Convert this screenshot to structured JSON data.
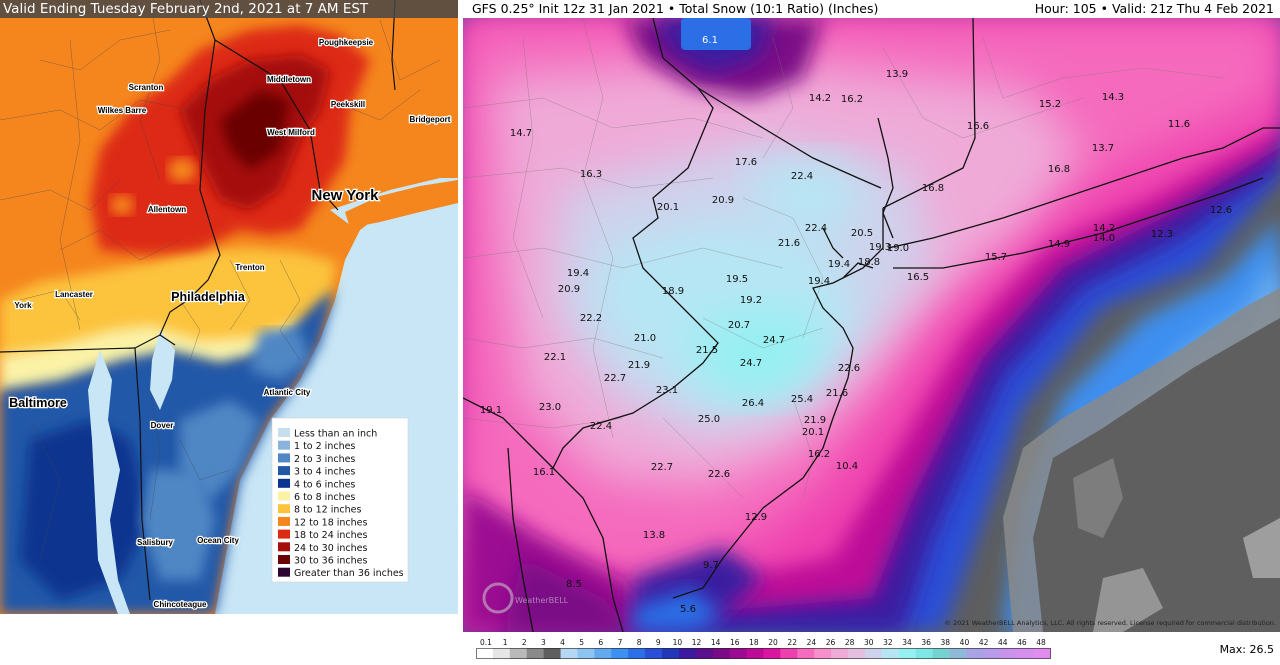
{
  "left_map": {
    "banner": "Valid Ending Tuesday February 2nd, 2021 at 7 AM EST",
    "cities": [
      {
        "name": "Poughkeepsie"
      },
      {
        "name": "Scranton"
      },
      {
        "name": "Middletown"
      },
      {
        "name": "Wilkes Barre"
      },
      {
        "name": "Peekskill"
      },
      {
        "name": "Bridgeport"
      },
      {
        "name": "West Milford"
      },
      {
        "name": "New York"
      },
      {
        "name": "Allentown"
      },
      {
        "name": "Trenton"
      },
      {
        "name": "Lancaster"
      },
      {
        "name": "Philadelphia"
      },
      {
        "name": "York"
      },
      {
        "name": "Baltimore"
      },
      {
        "name": "Atlantic City"
      },
      {
        "name": "Dover"
      },
      {
        "name": "Salisbury"
      },
      {
        "name": "Ocean City"
      },
      {
        "name": "Chincoteague"
      }
    ],
    "legend": [
      {
        "label": "Less than an inch",
        "color": "#c5def0"
      },
      {
        "label": "1 to 2 inches",
        "color": "#8ab4dd"
      },
      {
        "label": "2 to 3 inches",
        "color": "#4f86c4"
      },
      {
        "label": "3 to 4 inches",
        "color": "#2358a8"
      },
      {
        "label": "4 to 6 inches",
        "color": "#0a3490"
      },
      {
        "label": "6 to 8 inches",
        "color": "#fbf2a6"
      },
      {
        "label": "8 to 12 inches",
        "color": "#fcc33d"
      },
      {
        "label": "12 to 18 inches",
        "color": "#f5861e"
      },
      {
        "label": "18 to 24 inches",
        "color": "#dd2a12"
      },
      {
        "label": "24 to 30 inches",
        "color": "#a50f0a"
      },
      {
        "label": "30 to 36 inches",
        "color": "#6b0505"
      },
      {
        "label": "Greater than 36 inches",
        "color": "#2c0531"
      }
    ]
  },
  "right_map": {
    "header_left": "GFS 0.25° Init 12z 31 Jan 2021 • Total Snow (10:1 Ratio) (Inches)",
    "header_right": "Hour: 105 • Valid: 21z Thu 4 Feb 2021",
    "values": [
      {
        "v": "6.1"
      },
      {
        "v": "13.9"
      },
      {
        "v": "14.2"
      },
      {
        "v": "16.2"
      },
      {
        "v": "14.3"
      },
      {
        "v": "15.2"
      },
      {
        "v": "16.6"
      },
      {
        "v": "11.6"
      },
      {
        "v": "14.7"
      },
      {
        "v": "17.6"
      },
      {
        "v": "13.7"
      },
      {
        "v": "16.3"
      },
      {
        "v": "22.4"
      },
      {
        "v": "16.8"
      },
      {
        "v": "20.1"
      },
      {
        "v": "16.8"
      },
      {
        "v": "20.9"
      },
      {
        "v": "12.6"
      },
      {
        "v": "22.4"
      },
      {
        "v": "20.5"
      },
      {
        "v": "14.2"
      },
      {
        "v": "21.6"
      },
      {
        "v": "14.0"
      },
      {
        "v": "12.3"
      },
      {
        "v": "19.3"
      },
      {
        "v": "19.0"
      },
      {
        "v": "14.9"
      },
      {
        "v": "19.4"
      },
      {
        "v": "18.8"
      },
      {
        "v": "15.7"
      },
      {
        "v": "19.4"
      },
      {
        "v": "20.9"
      },
      {
        "v": "19.5"
      },
      {
        "v": "19.4"
      },
      {
        "v": "16.5"
      },
      {
        "v": "18.9"
      },
      {
        "v": "19.2"
      },
      {
        "v": "22.2"
      },
      {
        "v": "20.7"
      },
      {
        "v": "21.0"
      },
      {
        "v": "24.7"
      },
      {
        "v": "21.5"
      },
      {
        "v": "22.1"
      },
      {
        "v": "21.9"
      },
      {
        "v": "24.7"
      },
      {
        "v": "22.6"
      },
      {
        "v": "22.7"
      },
      {
        "v": "23.1"
      },
      {
        "v": "21.6"
      },
      {
        "v": "26.4"
      },
      {
        "v": "25.4"
      },
      {
        "v": "19.1"
      },
      {
        "v": "23.0"
      },
      {
        "v": "25.0"
      },
      {
        "v": "21.9"
      },
      {
        "v": "22.4"
      },
      {
        "v": "20.1"
      },
      {
        "v": "16.2"
      },
      {
        "v": "16.1"
      },
      {
        "v": "22.7"
      },
      {
        "v": "10.4"
      },
      {
        "v": "22.6"
      },
      {
        "v": "12.9"
      },
      {
        "v": "13.8"
      },
      {
        "v": "9.7"
      },
      {
        "v": "8.5"
      },
      {
        "v": "5.6"
      }
    ],
    "colorbar_ticks": [
      "0.1",
      "1",
      "2",
      "3",
      "4",
      "5",
      "6",
      "7",
      "8",
      "9",
      "10",
      "12",
      "14",
      "16",
      "18",
      "20",
      "22",
      "24",
      "26",
      "28",
      "30",
      "32",
      "34",
      "36",
      "38",
      "40",
      "42",
      "44",
      "46",
      "48"
    ],
    "colorbar_colors": [
      "#ffffff",
      "#e6e6e6",
      "#b9b9b9",
      "#8a8a8a",
      "#5f5f5f",
      "#b6d7f3",
      "#8ec4f1",
      "#63a9ee",
      "#3d8ff0",
      "#2c6ee6",
      "#2a4fd6",
      "#2436b8",
      "#3b1aa0",
      "#5a0f8c",
      "#7a0a86",
      "#9b0a92",
      "#bd0b98",
      "#da16a0",
      "#ee3fae",
      "#f56bbd",
      "#f690cb",
      "#efaad8",
      "#e4bfe0",
      "#cfd2ec",
      "#b6e6f4",
      "#96f0f2",
      "#7ee7e6",
      "#76d2d0",
      "#8fb9d8",
      "#a9a2e4",
      "#b79ae8",
      "#c993ec",
      "#d68fee",
      "#e18df0"
    ],
    "max_label": "Max: 26.5",
    "copyright": "© 2021 WeatherBELL Analytics, LLC. All rights reserved. License required for commercial distribution.",
    "watermark": "WeatherBELL"
  }
}
